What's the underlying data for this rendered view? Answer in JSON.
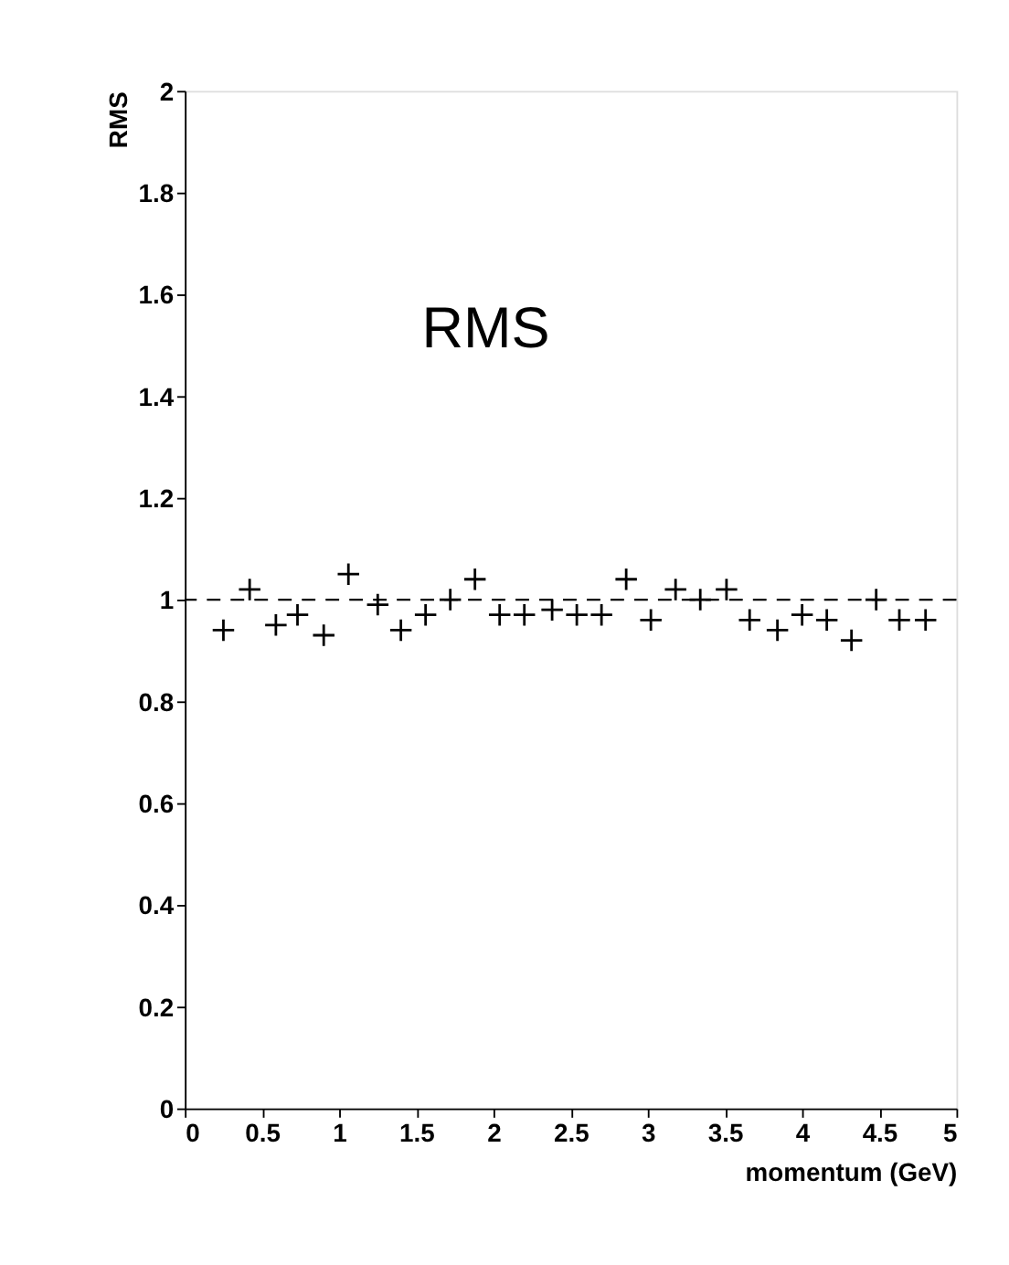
{
  "chart_data": {
    "type": "scatter",
    "xlabel": "momentum (GeV)",
    "ylabel": "RMS",
    "annotations": [
      "RMS"
    ],
    "x": [
      0.25,
      0.42,
      0.59,
      0.73,
      0.9,
      1.06,
      1.25,
      1.4,
      1.56,
      1.72,
      1.88,
      2.04,
      2.2,
      2.38,
      2.54,
      2.7,
      2.86,
      3.02,
      3.18,
      3.34,
      3.51,
      3.66,
      3.84,
      4.0,
      4.16,
      4.32,
      4.48,
      4.63,
      4.8
    ],
    "series": [
      {
        "color": "#000000",
        "values": [
          0.94,
          1.02,
          0.95,
          0.97,
          0.93,
          1.05,
          0.99,
          0.94,
          0.97,
          1.0,
          1.04,
          0.97,
          0.97,
          0.98,
          0.97,
          0.97,
          1.04,
          0.96,
          1.02,
          1.0,
          1.02,
          0.96,
          0.94,
          0.97,
          0.96,
          0.92,
          1.0,
          0.96,
          0.96
        ]
      }
    ],
    "marker": "cross",
    "xlim": [
      0,
      5
    ],
    "xticks": [
      0,
      0.5,
      1,
      1.5,
      2,
      2.5,
      3,
      3.5,
      4,
      4.5,
      5
    ],
    "ylim": [
      0,
      2
    ],
    "yticks": [
      0,
      0.2,
      0.4,
      0.6,
      0.8,
      1,
      1.2,
      1.4,
      1.6,
      1.8,
      2
    ],
    "ref_lines": [
      {
        "axis": "y",
        "value": 1,
        "line_style": "dashed",
        "color": "#000000"
      }
    ],
    "grid": false
  }
}
